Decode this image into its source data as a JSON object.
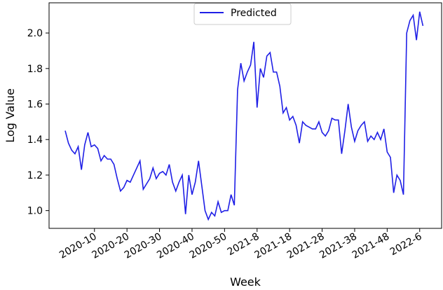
{
  "chart_data": {
    "type": "line",
    "x_label": "Week",
    "y_label": "Log Value",
    "categories": [
      null,
      null,
      null,
      null,
      null,
      null,
      null,
      null,
      null,
      "2020-10",
      null,
      null,
      null,
      null,
      null,
      null,
      null,
      null,
      null,
      "2020-20",
      null,
      null,
      null,
      null,
      null,
      null,
      null,
      null,
      null,
      "2020-30",
      null,
      null,
      null,
      null,
      null,
      null,
      null,
      null,
      null,
      "2020-40",
      null,
      null,
      null,
      null,
      null,
      null,
      null,
      null,
      null,
      "2020-50",
      null,
      null,
      null,
      null,
      null,
      null,
      null,
      null,
      null,
      "2021-8",
      null,
      null,
      null,
      null,
      null,
      null,
      null,
      null,
      null,
      "2021-18",
      null,
      null,
      null,
      null,
      null,
      null,
      null,
      null,
      null,
      "2021-28",
      null,
      null,
      null,
      null,
      null,
      null,
      null,
      null,
      null,
      "2021-38",
      null,
      null,
      null,
      null,
      null,
      null,
      null,
      null,
      null,
      "2021-48",
      null,
      null,
      null,
      null,
      null,
      null,
      null,
      null,
      null,
      "2022-6",
      null
    ],
    "series": [
      {
        "name": "Predicted",
        "color": "#1f1fe6",
        "values": [
          1.45,
          1.38,
          1.34,
          1.32,
          1.36,
          1.23,
          1.37,
          1.44,
          1.36,
          1.37,
          1.35,
          1.28,
          1.31,
          1.29,
          1.29,
          1.26,
          1.18,
          1.11,
          1.13,
          1.17,
          1.16,
          1.2,
          1.24,
          1.28,
          1.12,
          1.15,
          1.18,
          1.24,
          1.18,
          1.21,
          1.22,
          1.2,
          1.26,
          1.16,
          1.11,
          1.16,
          1.2,
          0.98,
          1.2,
          1.09,
          1.16,
          1.28,
          1.14,
          1.0,
          0.95,
          0.99,
          0.97,
          1.05,
          0.99,
          1.0,
          1.0,
          1.09,
          1.03,
          1.68,
          1.83,
          1.73,
          1.78,
          1.82,
          1.95,
          1.58,
          1.8,
          1.75,
          1.87,
          1.89,
          1.78,
          1.78,
          1.7,
          1.55,
          1.58,
          1.51,
          1.53,
          1.48,
          1.38,
          1.5,
          1.48,
          1.47,
          1.46,
          1.46,
          1.5,
          1.44,
          1.42,
          1.45,
          1.52,
          1.51,
          1.51,
          1.32,
          1.45,
          1.6,
          1.47,
          1.39,
          1.45,
          1.48,
          1.5,
          1.39,
          1.42,
          1.4,
          1.44,
          1.4,
          1.46,
          1.33,
          1.3,
          1.1,
          1.2,
          1.17,
          1.09,
          2.0,
          2.07,
          2.1,
          1.96,
          2.12,
          2.04
        ]
      }
    ],
    "ylim": [
      0.9,
      2.17
    ],
    "yticks": [
      {
        "value": 1,
        "label": "1.0"
      },
      1.2,
      1.4,
      1.6,
      1.8,
      {
        "value": 2,
        "label": "2.0"
      }
    ],
    "legend": "upper center",
    "grid": false
  }
}
